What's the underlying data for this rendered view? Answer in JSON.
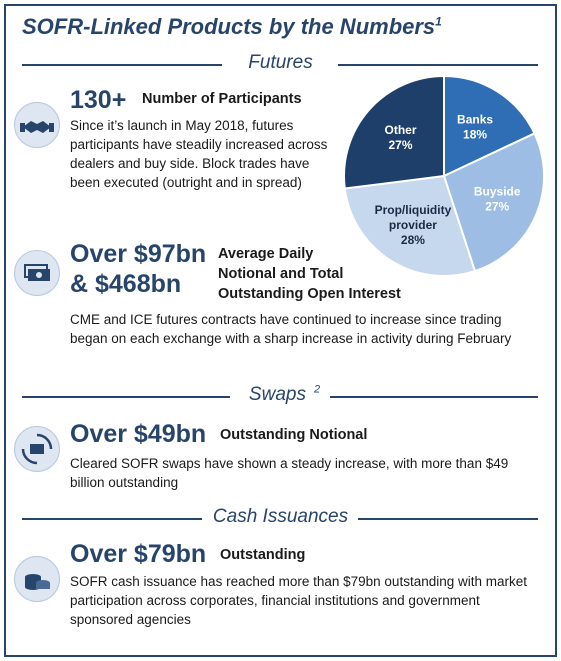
{
  "title": "SOFR-Linked Products by the Numbers",
  "title_sup": "1",
  "futures": {
    "heading": "Futures",
    "participants": {
      "value": "130+",
      "label": "Number of Participants",
      "body": "Since it’s launch in May 2018, futures participants have steadily increased across dealers and buy side. Block trades have been executed (outright and in spread)"
    },
    "notional": {
      "value_line1": "Over $97bn",
      "value_line2": "& $468bn",
      "label_line1": "Average Daily",
      "label_line2": "Notional and Total",
      "label_line3": "Outstanding Open Interest",
      "body": "CME and ICE futures contracts have continued to increase since trading began on each exchange with a sharp increase in activity during February"
    }
  },
  "swaps": {
    "heading": "Swaps",
    "heading_sup": "2",
    "value": "Over $49bn",
    "label": "Outstanding Notional",
    "body": "Cleared SOFR swaps have shown a steady increase, with more than $49 billion outstanding"
  },
  "cash": {
    "heading": "Cash Issuances",
    "value": "Over $79bn",
    "label": "Outstanding",
    "body": "SOFR cash issuance has reached more than $79bn outstanding with market participation across corporates, financial institutions and government sponsored agencies"
  },
  "icons": [
    "handshake-icon",
    "money-icon",
    "cycle-money-icon",
    "coins-icon"
  ],
  "colors": {
    "navy": "#27446b",
    "banks": "#2f6db5",
    "buyside": "#9dbde4",
    "prop": "#c6d8ee",
    "other": "#1f3f6b"
  },
  "chart_data": {
    "type": "pie",
    "title": "",
    "slices": [
      {
        "label": "Banks",
        "value": 18,
        "color": "#2f6db5",
        "text_color": "#ffffff"
      },
      {
        "label": "Buyside",
        "value": 27,
        "color": "#9dbde4",
        "text_color": "#ffffff"
      },
      {
        "label": "Prop/liquidity provider",
        "value": 28,
        "color": "#c6d8ee",
        "text_color": "#1a2a44"
      },
      {
        "label": "Other",
        "value": 27,
        "color": "#1f3f6b",
        "text_color": "#ffffff"
      }
    ]
  }
}
